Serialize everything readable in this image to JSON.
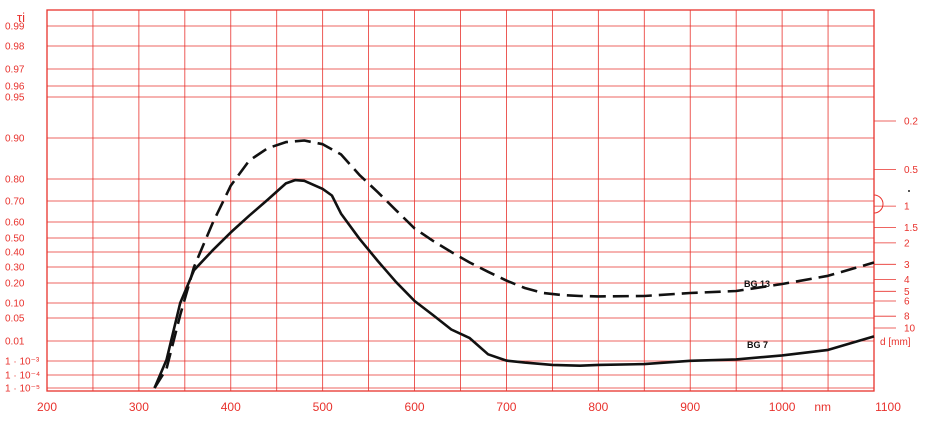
{
  "chart_data": {
    "type": "line",
    "title": "",
    "ylabel": "τi",
    "xlabel": "nm",
    "grid": true,
    "xlim": [
      200,
      1100
    ],
    "x_ticks": [
      "200",
      "300",
      "400",
      "500",
      "600",
      "700",
      "800",
      "900",
      "1000",
      "1100"
    ],
    "y_ticks": [
      {
        "label": "0.99",
        "v": 0.99
      },
      {
        "label": "0.98",
        "v": 0.98
      },
      {
        "label": "0.97",
        "v": 0.97
      },
      {
        "label": "0.96",
        "v": 0.96
      },
      {
        "label": "0.95",
        "v": 0.95
      },
      {
        "label": "0.90",
        "v": 0.9
      },
      {
        "label": "0.80",
        "v": 0.8
      },
      {
        "label": "0.70",
        "v": 0.7
      },
      {
        "label": "0.60",
        "v": 0.6
      },
      {
        "label": "0.50",
        "v": 0.5
      },
      {
        "label": "0.40",
        "v": 0.4
      },
      {
        "label": "0.30",
        "v": 0.3
      },
      {
        "label": "0.20",
        "v": 0.2
      },
      {
        "label": "0.10",
        "v": 0.1
      },
      {
        "label": "0.05",
        "v": 0.05
      },
      {
        "label": "0.01",
        "v": 0.01
      },
      {
        "label": "1 · 10⁻³",
        "v": 0.001
      },
      {
        "label": "1 · 10⁻⁴",
        "v": 0.0001
      },
      {
        "label": "1 · 10⁻⁵",
        "v": 1e-05
      }
    ],
    "thickness_scale": {
      "unit_label": "d [mm]",
      "ticks": [
        "0.2",
        "0.5",
        "1",
        "1.5",
        "2",
        "3",
        "4",
        "5",
        "6",
        "8",
        "10"
      ]
    },
    "series": [
      {
        "name": "BG 13",
        "style": "dashed",
        "points": [
          [
            317,
            1e-05
          ],
          [
            330,
            0.0005
          ],
          [
            345,
            0.06
          ],
          [
            360,
            0.3
          ],
          [
            380,
            0.59
          ],
          [
            400,
            0.77
          ],
          [
            420,
            0.845
          ],
          [
            440,
            0.875
          ],
          [
            460,
            0.89
          ],
          [
            480,
            0.894
          ],
          [
            500,
            0.885
          ],
          [
            520,
            0.86
          ],
          [
            540,
            0.81
          ],
          [
            560,
            0.74
          ],
          [
            580,
            0.655
          ],
          [
            600,
            0.56
          ],
          [
            620,
            0.48
          ],
          [
            640,
            0.4
          ],
          [
            660,
            0.33
          ],
          [
            680,
            0.27
          ],
          [
            700,
            0.215
          ],
          [
            720,
            0.175
          ],
          [
            740,
            0.15
          ],
          [
            760,
            0.14
          ],
          [
            780,
            0.135
          ],
          [
            800,
            0.133
          ],
          [
            850,
            0.135
          ],
          [
            900,
            0.15
          ],
          [
            950,
            0.16
          ],
          [
            1000,
            0.195
          ],
          [
            1050,
            0.245
          ],
          [
            1100,
            0.33
          ]
        ]
      },
      {
        "name": "BG 7",
        "style": "solid",
        "points": [
          [
            317,
            1e-05
          ],
          [
            330,
            0.0015
          ],
          [
            345,
            0.1
          ],
          [
            360,
            0.28
          ],
          [
            380,
            0.41
          ],
          [
            400,
            0.535
          ],
          [
            420,
            0.63
          ],
          [
            440,
            0.705
          ],
          [
            460,
            0.78
          ],
          [
            470,
            0.795
          ],
          [
            480,
            0.792
          ],
          [
            500,
            0.755
          ],
          [
            510,
            0.725
          ],
          [
            520,
            0.64
          ],
          [
            540,
            0.495
          ],
          [
            560,
            0.34
          ],
          [
            580,
            0.205
          ],
          [
            600,
            0.11
          ],
          [
            620,
            0.06
          ],
          [
            640,
            0.03
          ],
          [
            660,
            0.015
          ],
          [
            680,
            0.004
          ],
          [
            700,
            0.0012
          ],
          [
            720,
            0.0009
          ],
          [
            750,
            0.00075
          ],
          [
            780,
            0.0007
          ],
          [
            800,
            0.00075
          ],
          [
            850,
            0.0008
          ],
          [
            900,
            0.0011
          ],
          [
            950,
            0.0017
          ],
          [
            1000,
            0.0035
          ],
          [
            1050,
            0.006
          ],
          [
            1100,
            0.018
          ]
        ]
      }
    ]
  }
}
